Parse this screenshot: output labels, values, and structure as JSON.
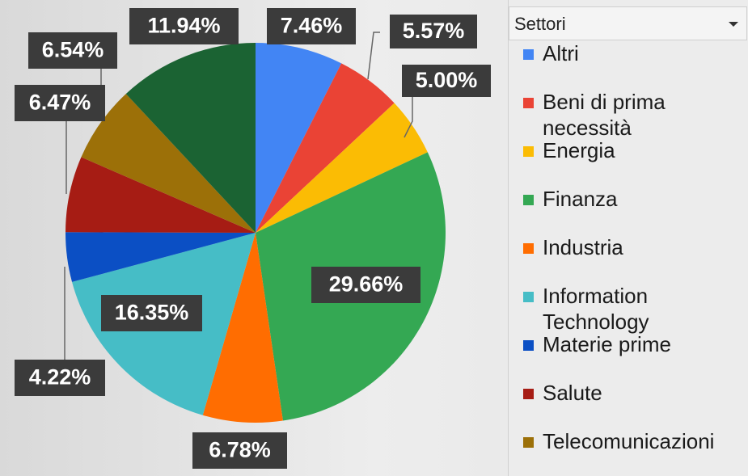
{
  "chart_data": {
    "type": "pie",
    "legend_title": "Settori",
    "categories": [
      "Altri",
      "Beni di prima necessità",
      "Energia",
      "Finanza",
      "Industria",
      "Information Technology",
      "Materie prime",
      "Salute",
      "Telecomunicazioni",
      null
    ],
    "values": [
      7.46,
      5.57,
      5.0,
      29.66,
      6.78,
      16.35,
      4.22,
      6.47,
      6.54,
      11.94
    ],
    "value_labels": [
      "7.46%",
      "5.57%",
      "5.00%",
      "29.66%",
      "6.78%",
      "16.35%",
      "4.22%",
      "6.47%",
      "6.54%",
      "11.94%"
    ],
    "colors": [
      "#4285f4",
      "#ea4335",
      "#fbbc04",
      "#34a853",
      "#ff6d01",
      "#46bdc6",
      "#0b4fc4",
      "#a61c14",
      "#9c7008",
      "#1b6333"
    ],
    "legend": "right"
  }
}
